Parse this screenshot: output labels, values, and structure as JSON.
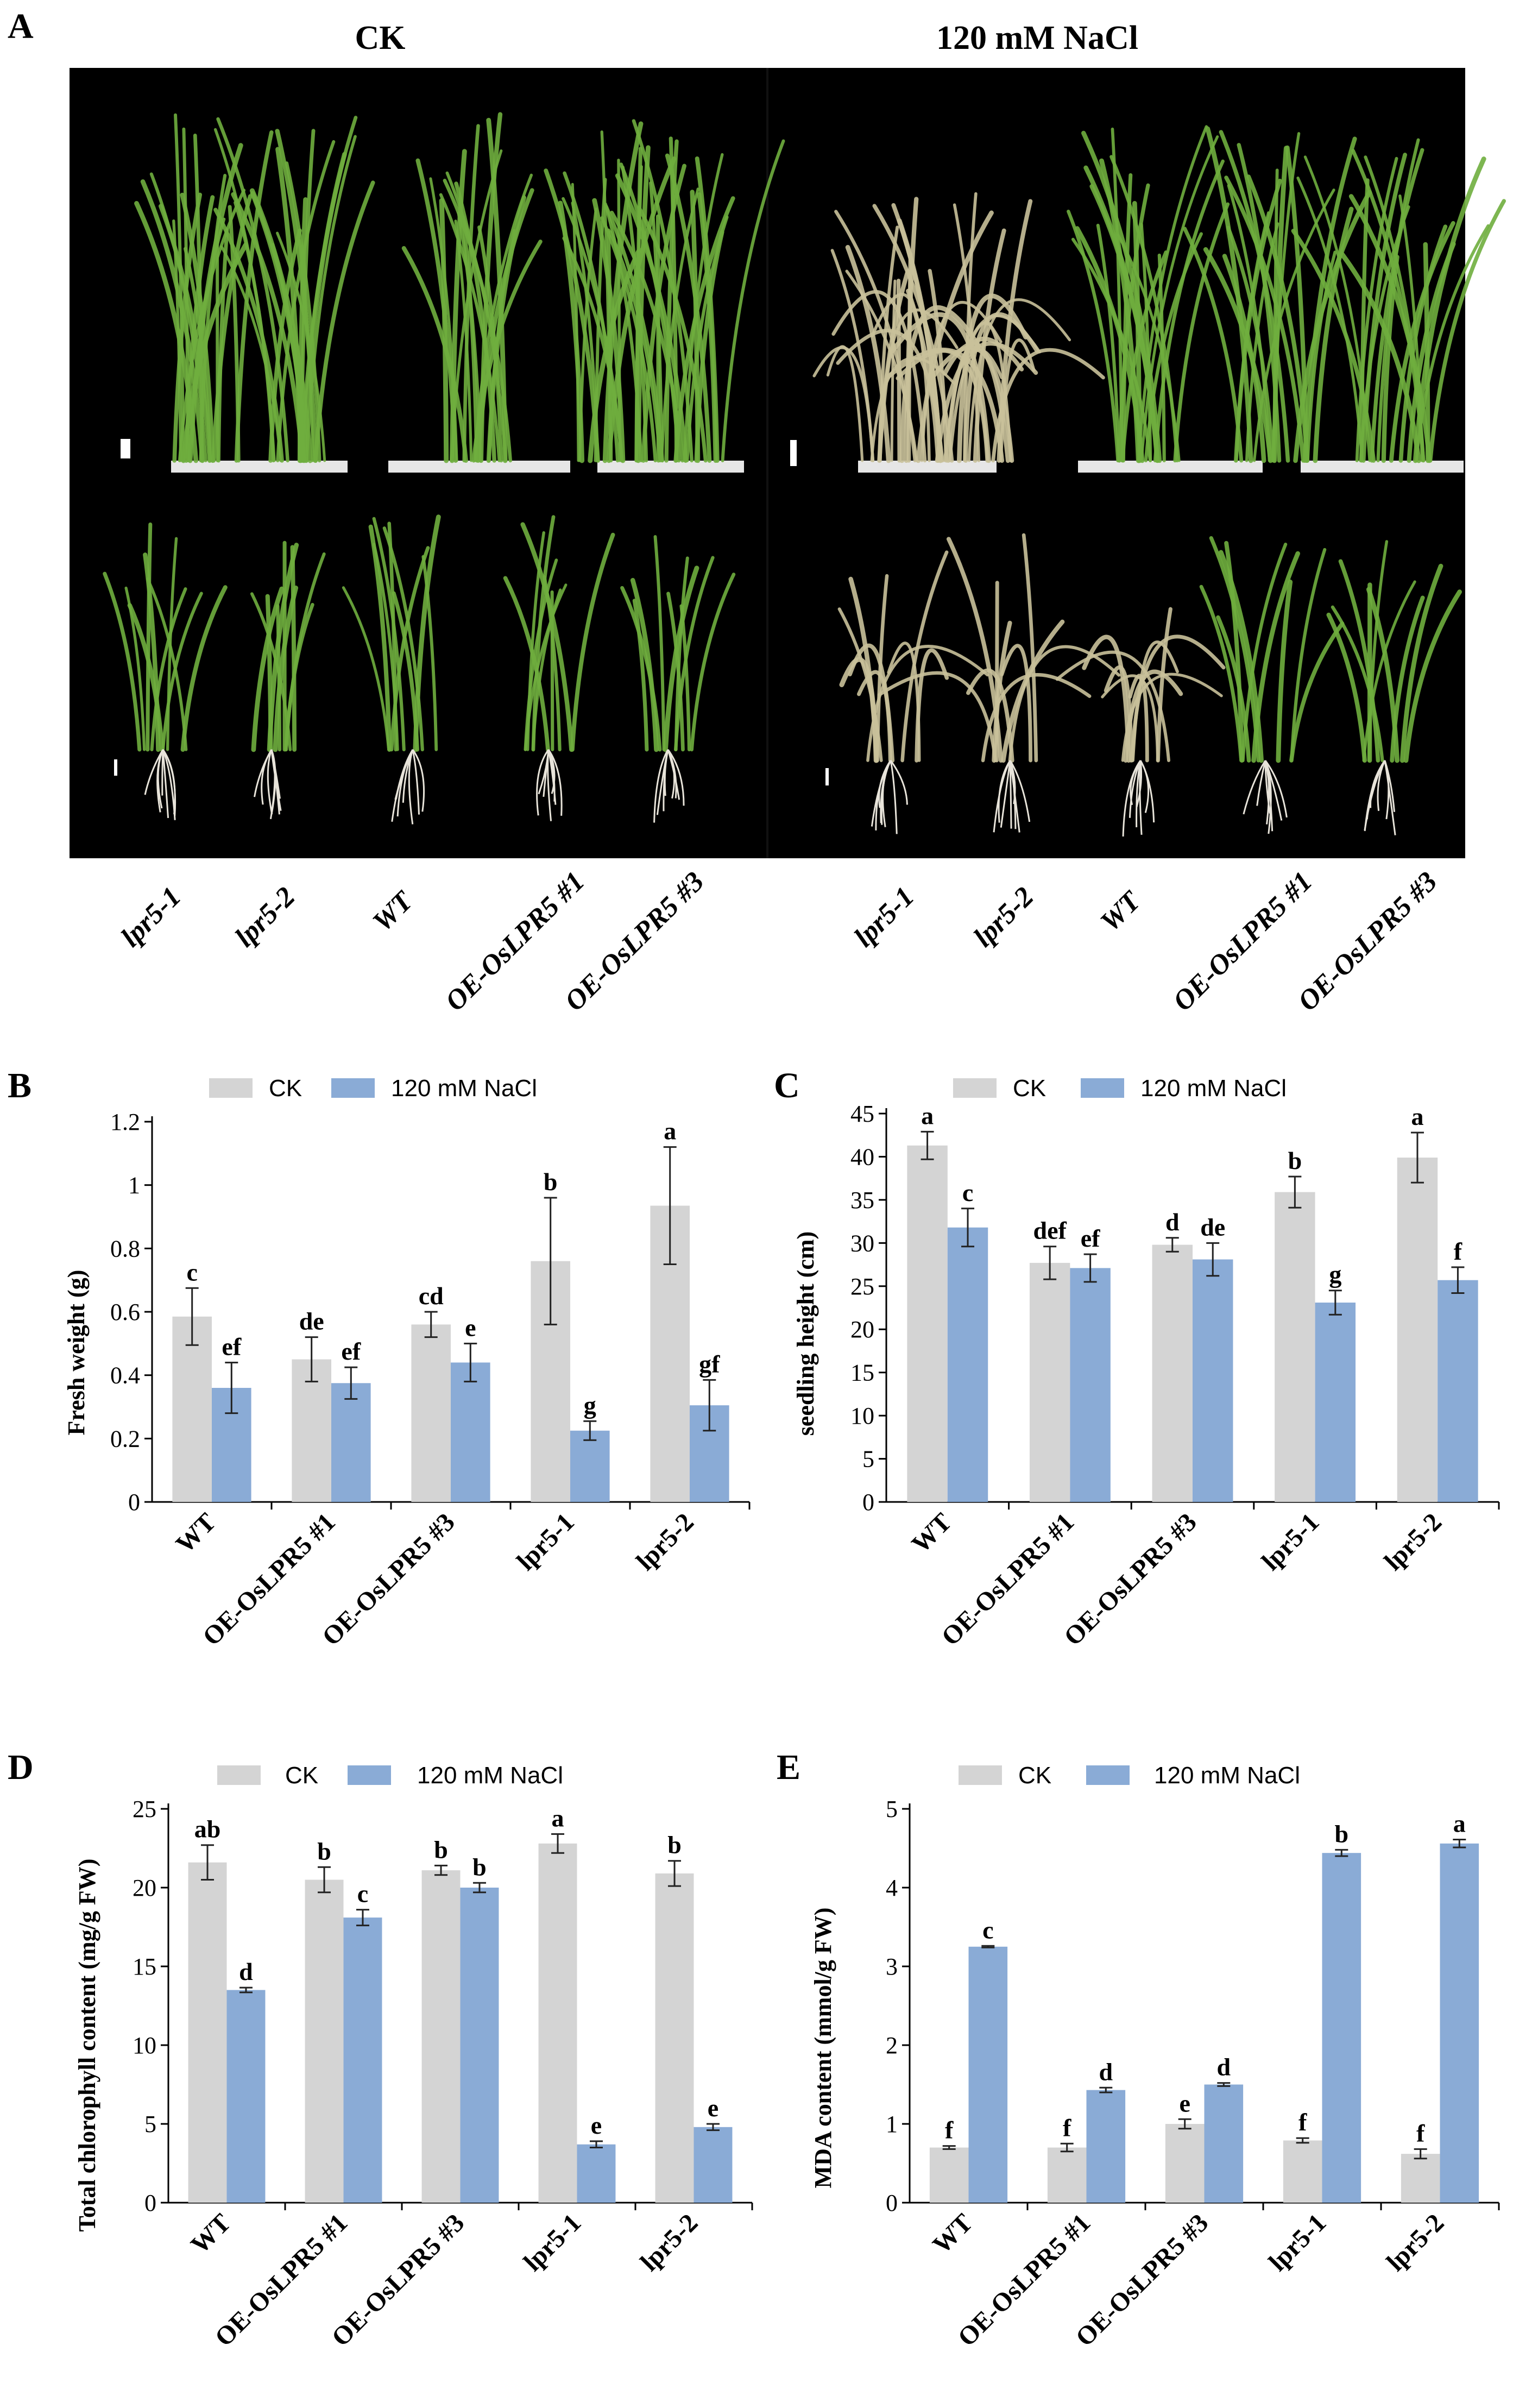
{
  "photo_panel": {
    "letter": "A",
    "conditions": [
      "CK",
      "120 mM NaCl"
    ],
    "genotype_labels": [
      "lpr5-1",
      "lpr5-2",
      "WT",
      "OE-OsLPR5 #1",
      "OE-OsLPR5 #3"
    ],
    "colors": {
      "background": "#000000",
      "healthy_leaf": "#6fae3e",
      "stressed_leaf": "#c9c19a",
      "root": "#e8e4da"
    }
  },
  "legend": {
    "ck": "CK",
    "nacl": "120 mM NaCl"
  },
  "colors": {
    "ck": "#d4d4d4",
    "nacl": "#8aabd6",
    "axis": "#000000"
  },
  "chart_data": [
    {
      "id": "B",
      "type": "bar",
      "letter": "B",
      "categories": [
        "WT",
        "OE-OsLPR5 #1",
        "OE-OsLPR5 #3",
        "lpr5-1",
        "lpr5-2"
      ],
      "ylabel": "Fresh weight (g)",
      "ylim": [
        0,
        1.2
      ],
      "yticks": [
        0,
        0.2,
        0.4,
        0.6,
        0.8,
        1,
        1.2
      ],
      "ytick_labels": [
        "0",
        "0.2",
        "0.4",
        "0.6",
        "0.8",
        "1",
        "1.2"
      ],
      "series": [
        {
          "name": "CK",
          "values": [
            0.585,
            0.45,
            0.56,
            0.76,
            0.935
          ],
          "errors": [
            0.09,
            0.07,
            0.04,
            0.2,
            0.185
          ],
          "letters": [
            "c",
            "de",
            "cd",
            "b",
            "a"
          ]
        },
        {
          "name": "120 mM NaCl",
          "values": [
            0.36,
            0.375,
            0.44,
            0.225,
            0.305
          ],
          "errors": [
            0.08,
            0.05,
            0.06,
            0.03,
            0.08
          ],
          "letters": [
            "ef",
            "ef",
            "e",
            "g",
            "gf"
          ]
        }
      ]
    },
    {
      "id": "C",
      "type": "bar",
      "letter": "C",
      "categories": [
        "WT",
        "OE-OsLPR5 #1",
        "OE-OsLPR5 #3",
        "lpr5-1",
        "lpr5-2"
      ],
      "ylabel": "seedling height (cm)",
      "ylim": [
        0,
        45
      ],
      "yticks": [
        0,
        5,
        10,
        15,
        20,
        25,
        30,
        35,
        40,
        45
      ],
      "ytick_labels": [
        "0",
        "5",
        "10",
        "15",
        "20",
        "25",
        "30",
        "35",
        "40",
        "45"
      ],
      "series": [
        {
          "name": "CK",
          "values": [
            41.3,
            27.7,
            29.8,
            35.9,
            39.9
          ],
          "errors": [
            1.6,
            1.9,
            0.8,
            1.8,
            2.9
          ],
          "letters": [
            "a",
            "def",
            "d",
            "b",
            "a"
          ]
        },
        {
          "name": "120 mM NaCl",
          "values": [
            31.8,
            27.1,
            28.1,
            23.1,
            25.7
          ],
          "errors": [
            2.2,
            1.6,
            1.9,
            1.4,
            1.5
          ],
          "letters": [
            "c",
            "ef",
            "de",
            "g",
            "f"
          ]
        }
      ]
    },
    {
      "id": "D",
      "type": "bar",
      "letter": "D",
      "categories": [
        "WT",
        "OE-OsLPR5 #1",
        "OE-OsLPR5 #3",
        "lpr5-1",
        "lpr5-2"
      ],
      "ylabel": "Total chlorophyll content (mg/g FW)",
      "ylim": [
        0,
        25
      ],
      "yticks": [
        0,
        5,
        10,
        15,
        20,
        25
      ],
      "ytick_labels": [
        "0",
        "5",
        "10",
        "15",
        "20",
        "25"
      ],
      "series": [
        {
          "name": "CK",
          "values": [
            21.6,
            20.5,
            21.1,
            22.8,
            20.9
          ],
          "errors": [
            1.1,
            0.8,
            0.3,
            0.6,
            0.8
          ],
          "letters": [
            "ab",
            "b",
            "b",
            "a",
            "b"
          ]
        },
        {
          "name": "120 mM NaCl",
          "values": [
            13.5,
            18.1,
            20.0,
            3.7,
            4.8
          ],
          "errors": [
            0.15,
            0.5,
            0.3,
            0.2,
            0.2
          ],
          "letters": [
            "d",
            "c",
            "b",
            "e",
            "e"
          ]
        }
      ]
    },
    {
      "id": "E",
      "type": "bar",
      "letter": "E",
      "categories": [
        "WT",
        "OE-OsLPR5 #1",
        "OE-OsLPR5 #3",
        "lpr5-1",
        "lpr5-2"
      ],
      "ylabel": "MDA content (mmol/g FW)",
      "ylim": [
        0,
        5
      ],
      "yticks": [
        0,
        1,
        2,
        3,
        4,
        5
      ],
      "ytick_labels": [
        "0",
        "1",
        "2",
        "3",
        "4",
        "5"
      ],
      "series": [
        {
          "name": "CK",
          "values": [
            0.7,
            0.7,
            1.0,
            0.79,
            0.62
          ],
          "errors": [
            0.02,
            0.05,
            0.06,
            0.03,
            0.06
          ],
          "letters": [
            "f",
            "f",
            "e",
            "f",
            "f"
          ]
        },
        {
          "name": "120 mM NaCl",
          "values": [
            3.25,
            1.43,
            1.5,
            4.44,
            4.56
          ],
          "errors": [
            0.01,
            0.03,
            0.02,
            0.04,
            0.05
          ],
          "letters": [
            "c",
            "d",
            "d",
            "b",
            "a"
          ]
        }
      ]
    }
  ]
}
